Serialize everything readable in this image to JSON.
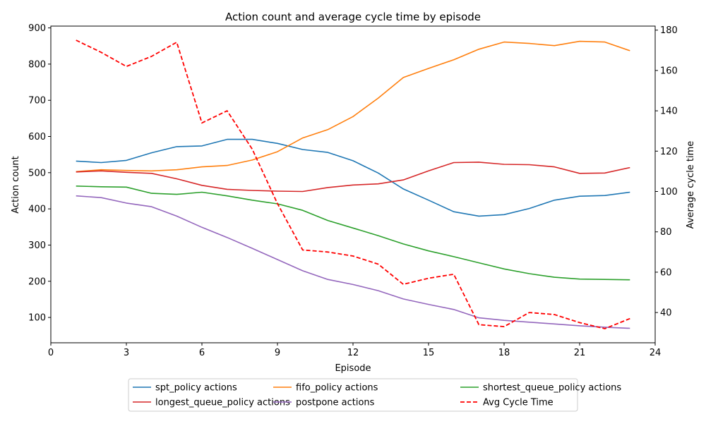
{
  "chart_data": {
    "type": "line",
    "title": "Action count and average cycle time by episode",
    "xlabel": "Episode",
    "ylabel": "Action count",
    "y2label": "Average cycle time",
    "xlim": [
      0,
      24
    ],
    "ylim": [
      30,
      905
    ],
    "y2lim": [
      25,
      182
    ],
    "xticks": [
      0,
      3,
      6,
      9,
      12,
      15,
      18,
      21,
      24
    ],
    "yticks": [
      100,
      200,
      300,
      400,
      500,
      600,
      700,
      800,
      900
    ],
    "y2ticks": [
      40,
      60,
      80,
      100,
      120,
      140,
      160,
      180
    ],
    "x": [
      1,
      2,
      3,
      4,
      5,
      6,
      7,
      8,
      9,
      10,
      11,
      12,
      13,
      14,
      15,
      16,
      17,
      18,
      19,
      20,
      21,
      22,
      23
    ],
    "series": [
      {
        "name": "spt_policy actions",
        "axis": "left",
        "color": "#1f77b4",
        "dash": "solid",
        "values": [
          532,
          528,
          534,
          555,
          572,
          574,
          592,
          592,
          581,
          564,
          556,
          533,
          499,
          455,
          424,
          392,
          380,
          384,
          401,
          424,
          435,
          437,
          446
        ]
      },
      {
        "name": "fifo_policy actions",
        "axis": "left",
        "color": "#ff7f0e",
        "dash": "solid",
        "values": [
          503,
          508,
          506,
          505,
          508,
          516,
          520,
          535,
          558,
          596,
          619,
          655,
          706,
          763,
          788,
          812,
          841,
          861,
          857,
          851,
          863,
          861,
          837
        ]
      },
      {
        "name": "shortest_queue_policy actions",
        "axis": "left",
        "color": "#2ca02c",
        "dash": "solid",
        "values": [
          463,
          461,
          460,
          443,
          440,
          446,
          436,
          424,
          414,
          396,
          368,
          347,
          326,
          303,
          284,
          268,
          251,
          234,
          221,
          211,
          206,
          205,
          204
        ]
      },
      {
        "name": "longest_queue_policy actions",
        "axis": "left",
        "color": "#d62728",
        "dash": "solid",
        "values": [
          502,
          505,
          501,
          498,
          483,
          465,
          454,
          451,
          449,
          448,
          459,
          466,
          469,
          480,
          505,
          528,
          529,
          523,
          522,
          516,
          498,
          499,
          514
        ]
      },
      {
        "name": "postpone actions",
        "axis": "left",
        "color": "#9467bd",
        "dash": "solid",
        "values": [
          436,
          431,
          416,
          406,
          380,
          349,
          321,
          291,
          260,
          229,
          205,
          191,
          174,
          151,
          136,
          122,
          99,
          92,
          87,
          82,
          77,
          73,
          70
        ]
      },
      {
        "name": "Avg Cycle Time",
        "axis": "right",
        "color": "#ff0000",
        "dash": "dashed",
        "values": [
          175,
          169,
          162,
          167,
          174,
          134,
          140,
          121,
          94,
          71,
          70,
          68,
          64,
          54,
          57,
          59,
          34,
          33,
          40,
          39,
          35,
          32,
          37
        ]
      }
    ],
    "legend": {
      "placement": "bottom-center",
      "columns": 3
    },
    "grid": false
  }
}
